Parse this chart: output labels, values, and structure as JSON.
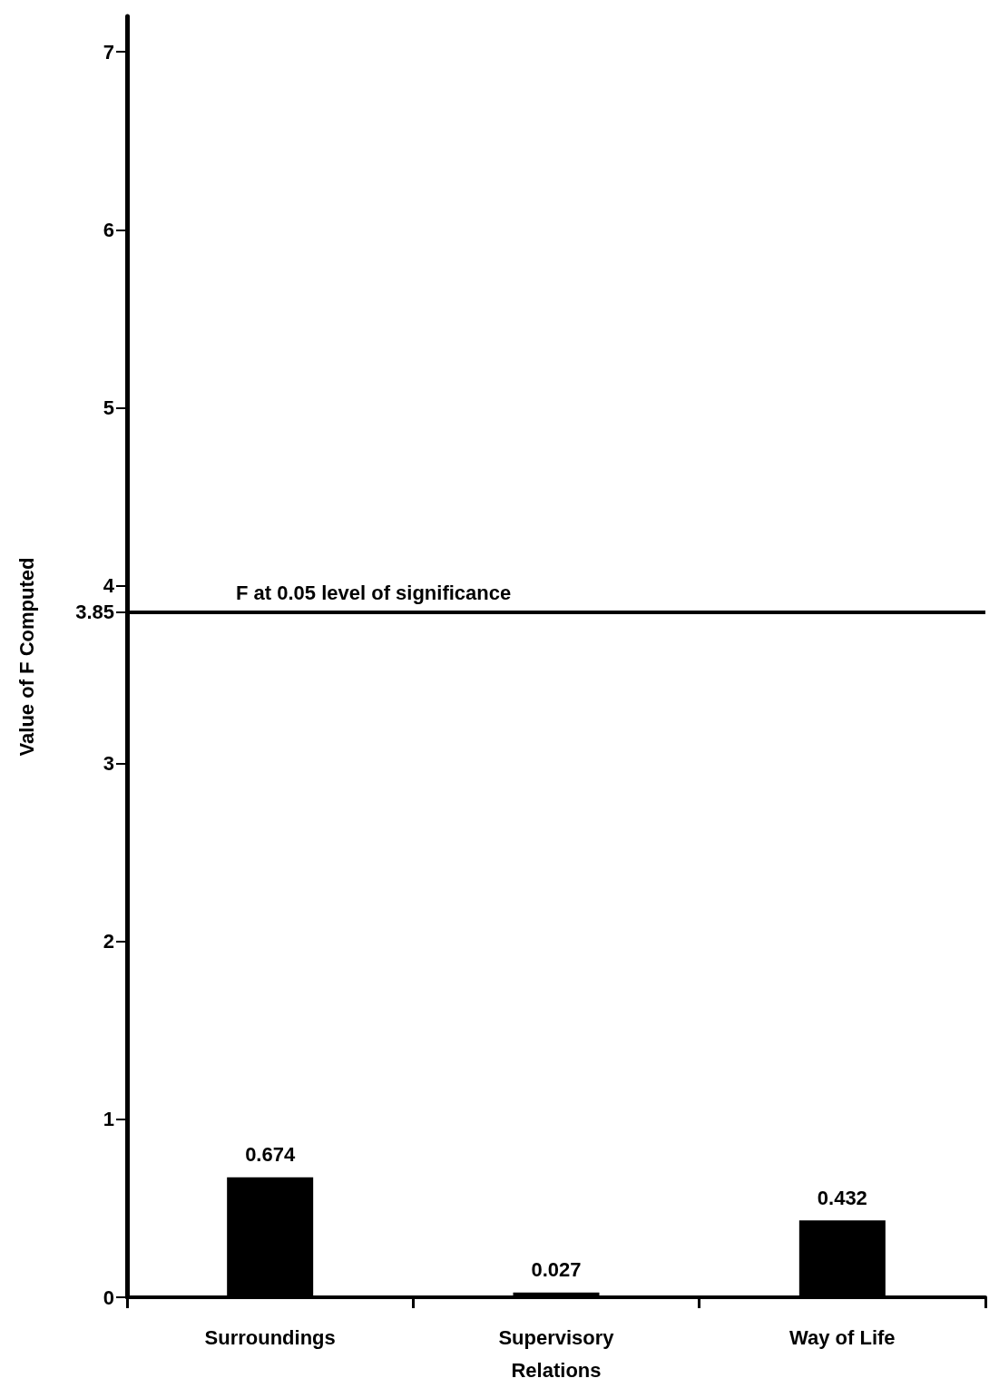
{
  "chart_data": {
    "type": "bar",
    "ylabel": "Value of F Computed",
    "categories": [
      "Surroundings",
      "Supervisory\nRelations",
      "Way of Life"
    ],
    "values": [
      0.674,
      0.027,
      0.432
    ],
    "color": "#000000",
    "data_labels": true,
    "ylim": [
      0,
      7.2
    ],
    "yticks": [
      0,
      1,
      2,
      3,
      3.85,
      4,
      5,
      6,
      7
    ],
    "grid": false,
    "ref_lines": [
      {
        "axis": "y",
        "value": 3.85,
        "label": "F at 0.05 level of significance"
      }
    ]
  }
}
